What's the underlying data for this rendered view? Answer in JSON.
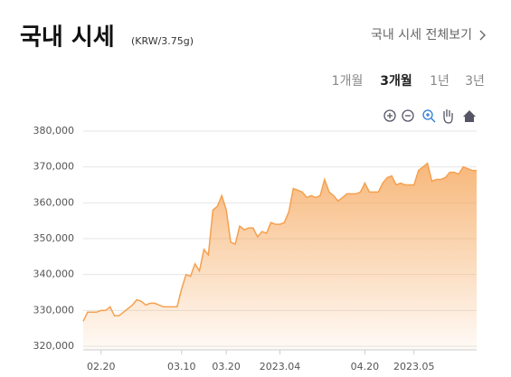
{
  "header": {
    "title": "국내 시세",
    "unit": "(KRW/3.75g)",
    "link": "국내 시세 전체보기"
  },
  "period_tabs": {
    "items": [
      "1개월",
      "3개월",
      "1년",
      "3년"
    ],
    "active": 1
  },
  "chart_data": {
    "type": "area",
    "categories": [
      null,
      null,
      null,
      null,
      "02.20",
      null,
      null,
      null,
      null,
      null,
      null,
      null,
      null,
      null,
      null,
      null,
      null,
      null,
      null,
      null,
      null,
      null,
      "03.10",
      null,
      null,
      null,
      null,
      null,
      null,
      null,
      null,
      null,
      "03.20",
      null,
      null,
      null,
      null,
      null,
      null,
      null,
      null,
      null,
      null,
      null,
      "2023.04",
      null,
      null,
      null,
      null,
      null,
      null,
      null,
      null,
      null,
      null,
      null,
      null,
      null,
      null,
      null,
      null,
      null,
      null,
      "04.20",
      null,
      null,
      null,
      null,
      null,
      null,
      null,
      null,
      null,
      null,
      "2023.05",
      null,
      null,
      null,
      null,
      null,
      null,
      null,
      null,
      null,
      null,
      null,
      null,
      null,
      null
    ],
    "values": [
      327000,
      329500,
      329500,
      329500,
      330000,
      330000,
      331000,
      328500,
      328500,
      329500,
      330500,
      331500,
      333000,
      332500,
      331500,
      332000,
      332000,
      331500,
      331000,
      331000,
      331000,
      331000,
      336000,
      340000,
      339500,
      343000,
      341000,
      347000,
      345500,
      358000,
      359000,
      362000,
      358000,
      349000,
      348500,
      353500,
      352500,
      353000,
      353000,
      350500,
      352000,
      351500,
      354500,
      354000,
      354000,
      354500,
      357500,
      364000,
      363500,
      363000,
      361500,
      362000,
      361500,
      362000,
      366500,
      363000,
      362000,
      360500,
      361500,
      362500,
      362500,
      362500,
      363000,
      365500,
      363000,
      363000,
      363000,
      365500,
      367000,
      367500,
      365000,
      365500,
      365000,
      365000,
      365000,
      369000,
      370000,
      371000,
      366000,
      366500,
      366500,
      367000,
      368500,
      368500,
      368000,
      370000,
      369500,
      369000,
      369000
    ],
    "color": "#f5a04f",
    "ylim": [
      319000,
      381000
    ],
    "yticks": [
      {
        "value": 320000,
        "label": "320,000"
      },
      {
        "value": 330000,
        "label": "330,000"
      },
      {
        "value": 340000,
        "label": "340,000"
      },
      {
        "value": 350000,
        "label": "350,000"
      },
      {
        "value": 360000,
        "label": "360,000"
      },
      {
        "value": 370000,
        "label": "370,000"
      },
      {
        "value": 380000,
        "label": "380,000"
      }
    ],
    "grid": true
  }
}
